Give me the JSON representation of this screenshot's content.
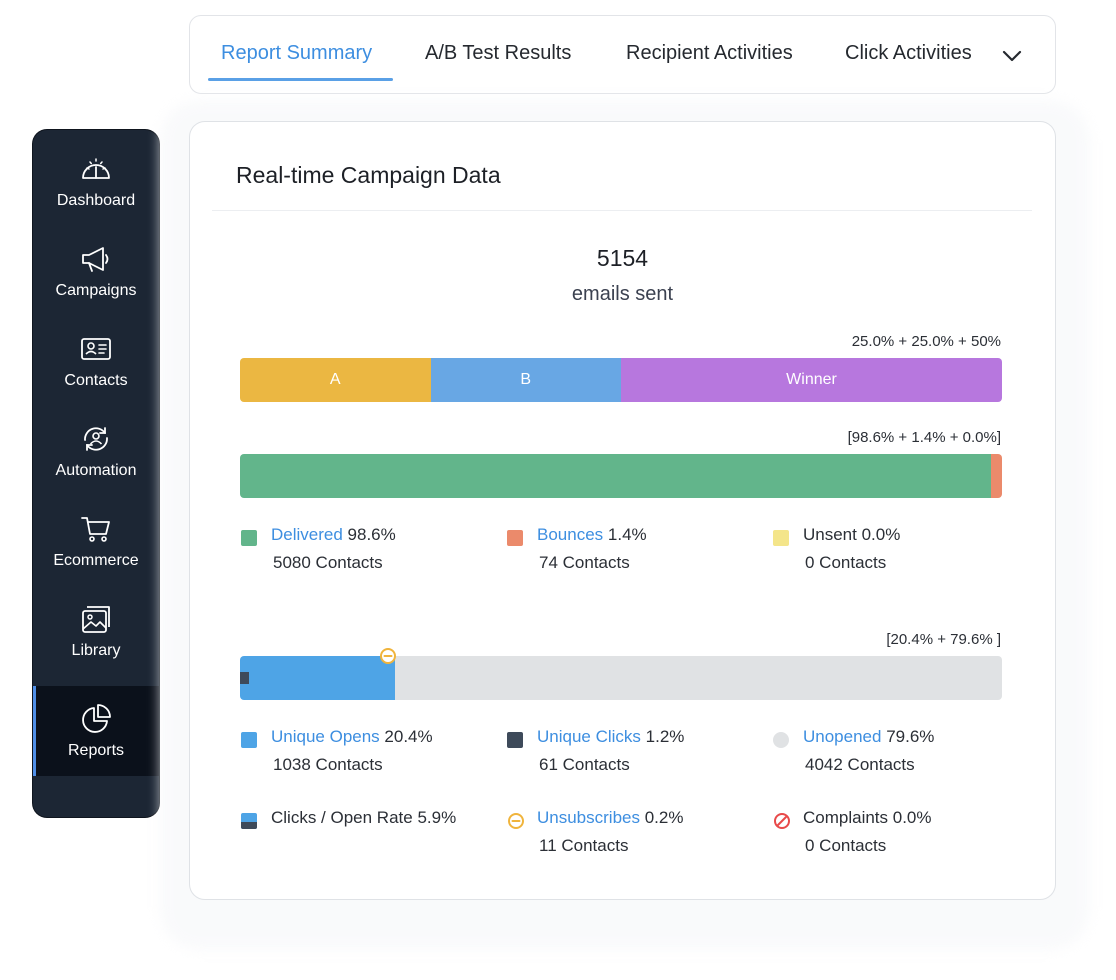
{
  "tabs": [
    {
      "label": "Report Summary"
    },
    {
      "label": "A/B Test Results"
    },
    {
      "label": "Recipient Activities"
    },
    {
      "label": "Click Activities"
    }
  ],
  "sidebar": {
    "items": [
      {
        "label": "Dashboard",
        "icon": "speedometer-icon"
      },
      {
        "label": "Campaigns",
        "icon": "megaphone-icon"
      },
      {
        "label": "Contacts",
        "icon": "contact-card-icon"
      },
      {
        "label": "Automation",
        "icon": "automation-icon"
      },
      {
        "label": "Ecommerce",
        "icon": "cart-icon"
      },
      {
        "label": "Library",
        "icon": "image-library-icon"
      },
      {
        "label": "Reports",
        "icon": "pie-chart-icon",
        "active": true
      }
    ]
  },
  "card": {
    "title": "Real-time Campaign Data",
    "total": "5154",
    "total_label": "emails sent"
  },
  "split": {
    "note": "25.0% + 25.0% + 50%",
    "segments": [
      {
        "label": "A",
        "share": 0.25,
        "color": "#ebb742"
      },
      {
        "label": "B",
        "share": 0.25,
        "color": "#68a7e4"
      },
      {
        "label": "Winner",
        "share": 0.5,
        "color": "#b777de"
      }
    ]
  },
  "delivery": {
    "note": "[98.6% + 1.4% + 0.0%]",
    "fractions": {
      "delivered": 0.986,
      "bounces": 0.014,
      "unsent": 0.0
    },
    "colors": {
      "delivered": "#62b58b",
      "bounces": "#eb8a6b",
      "unsent": "#f4e58a"
    },
    "legend": [
      {
        "link": "Delivered",
        "pct": " 98.6%",
        "contacts": "5080 Contacts"
      },
      {
        "link": "Bounces",
        "pct": " 1.4%",
        "contacts": "74 Contacts"
      },
      {
        "text": "Unsent 0.0%",
        "contacts": "0 Contacts"
      }
    ]
  },
  "engagement": {
    "note": "[20.4% + 79.6% ]",
    "fractions": {
      "opens": 0.204,
      "unopened": 0.796,
      "clicks": 0.012,
      "unsubscribes": 0.002
    },
    "colors": {
      "opens": "#4ea4e6",
      "clicks": "#3e4a5a",
      "unopened": "#e0e2e4",
      "unsubscribe": "#f0b43c",
      "complaint": "#e84a4a"
    },
    "legend": [
      {
        "link": "Unique Opens",
        "pct": " 20.4%",
        "contacts": "1038 Contacts"
      },
      {
        "link": "Unique Clicks",
        "pct": " 1.2%",
        "contacts": "61 Contacts"
      },
      {
        "link": "Unopened",
        "pct": " 79.6%",
        "contacts": "4042 Contacts"
      },
      {
        "text": "Clicks / Open Rate 5.9%"
      },
      {
        "link": "Unsubscribes",
        "pct": " 0.2%",
        "contacts": "11 Contacts"
      },
      {
        "text": "Complaints 0.0%",
        "contacts": "0 Contacts"
      }
    ]
  }
}
